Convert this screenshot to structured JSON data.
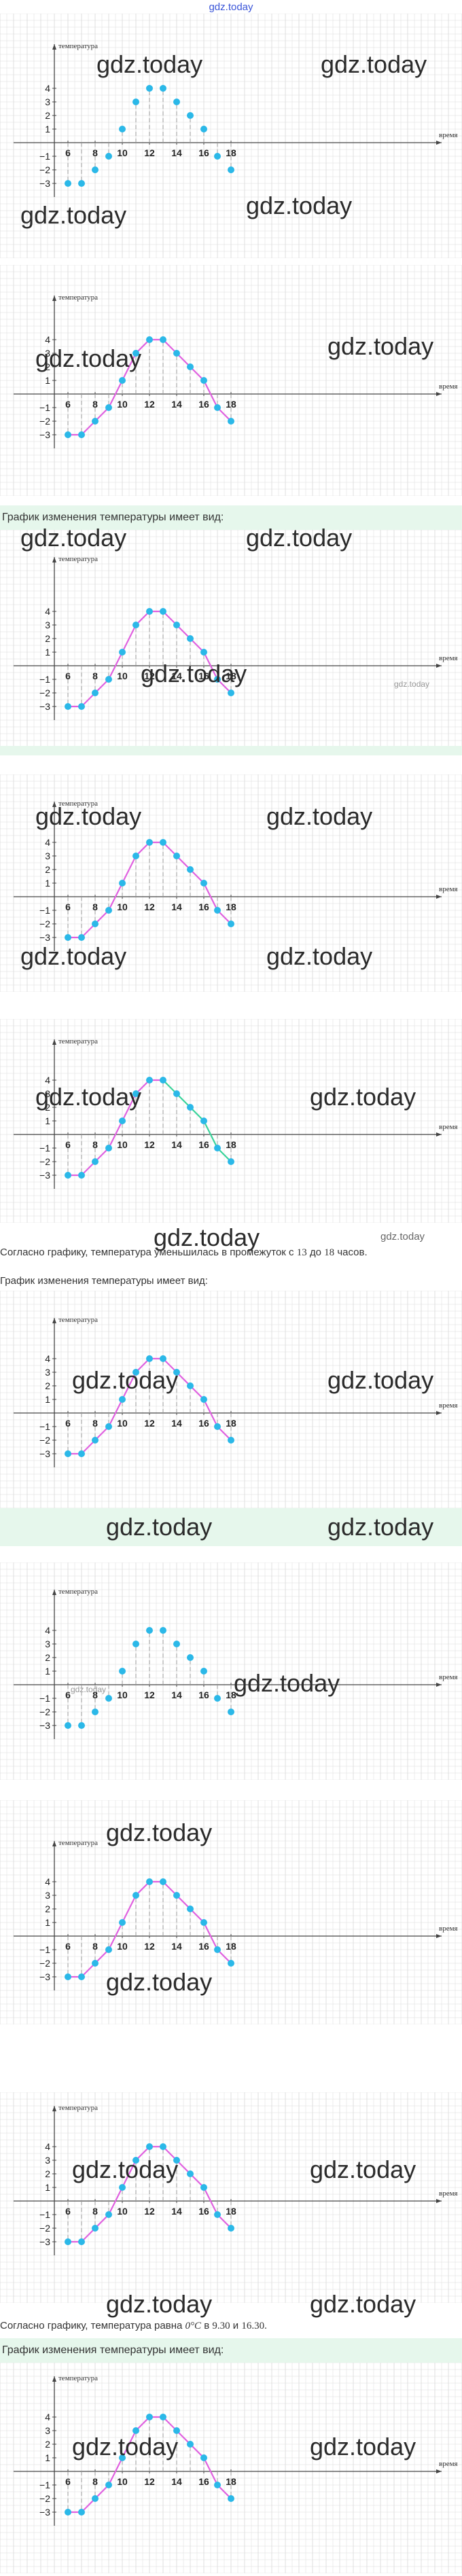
{
  "header": {
    "site_link": "gdz.today"
  },
  "watermark": {
    "text": "gdz.today"
  },
  "axes": {
    "y_label": "температура",
    "x_label": "время"
  },
  "texts": {
    "band_graph_view": "График изменения температуры имеет вид:",
    "answer_decrease": "Согласно графику, температура уменьшилась в промежуток с",
    "answer_decrease_from": "13",
    "answer_decrease_mid": "до",
    "answer_decrease_to": "18",
    "answer_decrease_end": "часов.",
    "answer_zero": "Согласно графику, температура равна",
    "answer_zero_value": "0°C",
    "answer_zero_mid": "в",
    "answer_zero_t1": "9.30",
    "answer_zero_and": "и",
    "answer_zero_t2": "16.30."
  },
  "colors": {
    "grid": "#dcdcdc",
    "axis": "#444444",
    "point": "#2bb8e8",
    "line": "#e060e0",
    "line_highlight": "#39d39a",
    "dash": "#999999",
    "band": "#e6f7ec"
  },
  "chart_data": [
    {
      "type": "scatter",
      "x": [
        6,
        7,
        8,
        9,
        10,
        11,
        12,
        13,
        14,
        15,
        16,
        17,
        18
      ],
      "y": [
        -3,
        -3,
        -2,
        -1,
        1,
        3,
        4,
        4,
        3,
        2,
        1,
        -1,
        -2
      ],
      "xlim": [
        4,
        19
      ],
      "ylim": [
        -4,
        5
      ],
      "xticks": [
        6,
        8,
        10,
        12,
        14,
        16,
        18
      ],
      "yticks": [
        -3,
        -2,
        -1,
        1,
        2,
        3,
        4
      ],
      "connected": false,
      "grid": true
    },
    {
      "type": "line",
      "x": [
        6,
        7,
        8,
        9,
        10,
        11,
        12,
        13,
        14,
        15,
        16,
        17,
        18
      ],
      "y": [
        -3,
        -3,
        -2,
        -1,
        1,
        3,
        4,
        4,
        3,
        2,
        1,
        -1,
        -2
      ],
      "xlim": [
        4,
        19
      ],
      "ylim": [
        -4,
        5
      ],
      "xticks": [
        6,
        8,
        10,
        12,
        14,
        16,
        18
      ],
      "yticks": [
        -3,
        -2,
        -1,
        1,
        2,
        3,
        4
      ],
      "connected": true,
      "grid": true
    },
    {
      "type": "line",
      "x": [
        6,
        7,
        8,
        9,
        10,
        11,
        12,
        13,
        14,
        15,
        16,
        17,
        18
      ],
      "y": [
        -3,
        -3,
        -2,
        -1,
        1,
        3,
        4,
        4,
        3,
        2,
        1,
        -1,
        -2
      ],
      "xlim": [
        4,
        19
      ],
      "ylim": [
        -4,
        5
      ],
      "xticks": [
        6,
        8,
        10,
        12,
        14,
        16,
        18
      ],
      "yticks": [
        -3,
        -2,
        -1,
        1,
        2,
        3,
        4
      ],
      "connected": true,
      "grid": true
    },
    {
      "type": "line",
      "x": [
        6,
        7,
        8,
        9,
        10,
        11,
        12,
        13,
        14,
        15,
        16,
        17,
        18
      ],
      "y": [
        -3,
        -3,
        -2,
        -1,
        1,
        3,
        4,
        4,
        3,
        2,
        1,
        -1,
        -2
      ],
      "xlim": [
        4,
        19
      ],
      "ylim": [
        -4,
        5
      ],
      "xticks": [
        6,
        8,
        10,
        12,
        14,
        16,
        18
      ],
      "yticks": [
        -3,
        -2,
        -1,
        1,
        2,
        3,
        4
      ],
      "connected": true,
      "grid": true
    },
    {
      "type": "line",
      "x": [
        6,
        7,
        8,
        9,
        10,
        11,
        12,
        13,
        14,
        15,
        16,
        17,
        18
      ],
      "y": [
        -3,
        -3,
        -2,
        -1,
        1,
        3,
        4,
        4,
        3,
        2,
        1,
        -1,
        -2
      ],
      "xlim": [
        4,
        19
      ],
      "ylim": [
        -4,
        5
      ],
      "xticks": [
        6,
        8,
        10,
        12,
        14,
        16,
        18
      ],
      "yticks": [
        -3,
        -2,
        -1,
        1,
        2,
        3,
        4
      ],
      "connected": true,
      "grid": true,
      "highlight_from": 13
    },
    {
      "type": "line",
      "x": [
        6,
        7,
        8,
        9,
        10,
        11,
        12,
        13,
        14,
        15,
        16,
        17,
        18
      ],
      "y": [
        -3,
        -3,
        -2,
        -1,
        1,
        3,
        4,
        4,
        3,
        2,
        1,
        -1,
        -2
      ],
      "xlim": [
        4,
        19
      ],
      "ylim": [
        -4,
        5
      ],
      "xticks": [
        6,
        8,
        10,
        12,
        14,
        16,
        18
      ],
      "yticks": [
        -3,
        -2,
        -1,
        1,
        2,
        3,
        4
      ],
      "connected": true,
      "grid": true
    },
    {
      "type": "scatter",
      "x": [
        6,
        7,
        8,
        9,
        10,
        11,
        12,
        13,
        14,
        15,
        16,
        17,
        18
      ],
      "y": [
        -3,
        -3,
        -2,
        -1,
        1,
        3,
        4,
        4,
        3,
        2,
        1,
        -1,
        -2
      ],
      "xlim": [
        4,
        19
      ],
      "ylim": [
        -4,
        5
      ],
      "xticks": [
        6,
        8,
        10,
        12,
        14,
        16,
        18
      ],
      "yticks": [
        -3,
        -2,
        -1,
        1,
        2,
        3,
        4
      ],
      "connected": false,
      "grid": true
    },
    {
      "type": "line",
      "x": [
        6,
        7,
        8,
        9,
        10,
        11,
        12,
        13,
        14,
        15,
        16,
        17,
        18
      ],
      "y": [
        -3,
        -3,
        -2,
        -1,
        1,
        3,
        4,
        4,
        3,
        2,
        1,
        -1,
        -2
      ],
      "xlim": [
        4,
        19
      ],
      "ylim": [
        -4,
        5
      ],
      "xticks": [
        6,
        8,
        10,
        12,
        14,
        16,
        18
      ],
      "yticks": [
        -3,
        -2,
        -1,
        1,
        2,
        3,
        4
      ],
      "connected": true,
      "grid": true
    },
    {
      "type": "line",
      "x": [
        6,
        7,
        8,
        9,
        10,
        11,
        12,
        13,
        14,
        15,
        16,
        17,
        18
      ],
      "y": [
        -3,
        -3,
        -2,
        -1,
        1,
        3,
        4,
        4,
        3,
        2,
        1,
        -1,
        -2
      ],
      "xlim": [
        4,
        19
      ],
      "ylim": [
        -4,
        5
      ],
      "xticks": [
        6,
        8,
        10,
        12,
        14,
        16,
        18
      ],
      "yticks": [
        -3,
        -2,
        -1,
        1,
        2,
        3,
        4
      ],
      "connected": true,
      "grid": true
    },
    {
      "type": "line",
      "x": [
        6,
        7,
        8,
        9,
        10,
        11,
        12,
        13,
        14,
        15,
        16,
        17,
        18
      ],
      "y": [
        -3,
        -3,
        -2,
        -1,
        1,
        3,
        4,
        4,
        3,
        2,
        1,
        -1,
        -2
      ],
      "xlim": [
        4,
        19
      ],
      "ylim": [
        -4,
        5
      ],
      "xticks": [
        6,
        8,
        10,
        12,
        14,
        16,
        18
      ],
      "yticks": [
        -3,
        -2,
        -1,
        1,
        2,
        3,
        4
      ],
      "connected": true,
      "grid": true
    }
  ]
}
